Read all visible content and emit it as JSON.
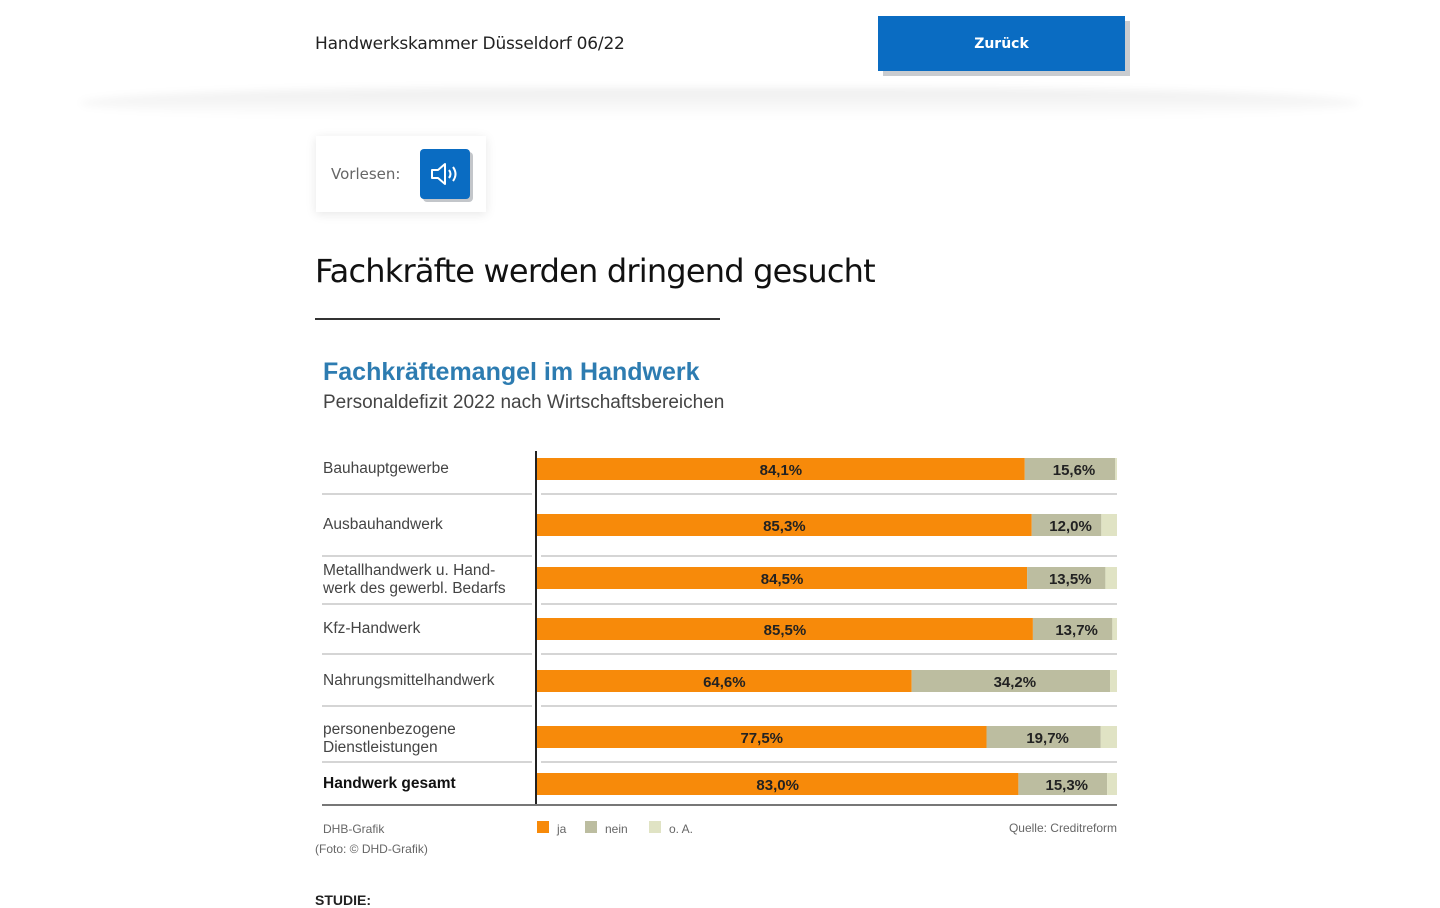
{
  "header": {
    "title": "Handwerkskammer Düsseldorf 06/22",
    "back_label": "Zurück"
  },
  "readaloud": {
    "label": "Vorlesen:",
    "icon": "speaker-icon"
  },
  "article": {
    "title": "Fachkräfte werden dringend gesucht",
    "photo_credit": "(Foto: © DHD-Grafik)",
    "cutoff_lead": "STUDIE:"
  },
  "colors": {
    "brand_blue": "#0a6cc2",
    "ja": "#f78a0a",
    "nein": "#bcbda0",
    "oA": "#e0e3c4",
    "chart_title": "#2d7cb1"
  },
  "chart_data": {
    "type": "bar",
    "orientation": "horizontal",
    "stacked": true,
    "title": "Fachkräftemangel im Handwerk",
    "subtitle": "Personaldefizit 2022 nach Wirtschaftsbereichen",
    "xlabel": "",
    "ylabel": "",
    "xlim": [
      0,
      100
    ],
    "unit": "%",
    "categories": [
      "Bauhauptgewerbe",
      "Ausbauhandwerk",
      "Metallhandwerk u. Hand-|werk des gewerbl. Bedarfs",
      "Kfz-Handwerk",
      "Nahrungsmittelhandwerk",
      "personenbezogene|Dienstleistungen",
      "Handwerk gesamt"
    ],
    "bold_categories": [
      "Handwerk gesamt"
    ],
    "series": [
      {
        "name": "ja",
        "color": "#f78a0a",
        "values": [
          84.1,
          85.3,
          84.5,
          85.5,
          64.6,
          77.5,
          83.0
        ],
        "labels": [
          "84,1%",
          "85,3%",
          "84,5%",
          "85,5%",
          "64,6%",
          "77,5%",
          "83,0%"
        ]
      },
      {
        "name": "nein",
        "color": "#bcbda0",
        "values": [
          15.6,
          12.0,
          13.5,
          13.7,
          34.2,
          19.7,
          15.3
        ],
        "labels": [
          "15,6%",
          "12,0%",
          "13,5%",
          "13,7%",
          "34,2%",
          "19,7%",
          "15,3%"
        ]
      },
      {
        "name": "o. A.",
        "color": "#e0e3c4",
        "values": [
          0.3,
          2.7,
          2.0,
          0.8,
          1.2,
          2.8,
          1.7
        ],
        "labels": [
          "",
          "",
          "",
          "",
          "",
          "",
          ""
        ]
      }
    ],
    "legend": {
      "placement": "bottom",
      "items": [
        "ja",
        "nein",
        "o. A."
      ]
    },
    "grid": false,
    "footer_left": "DHB-Grafik",
    "footer_right": "Quelle: Creditreform"
  }
}
